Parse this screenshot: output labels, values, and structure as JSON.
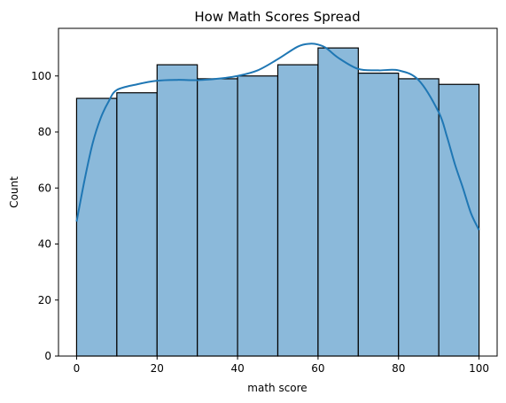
{
  "chart_data": {
    "type": "bar",
    "title": "How Math Scores Spread",
    "xlabel": "math score",
    "ylabel": "Count",
    "bins": [
      {
        "start": 0,
        "end": 10,
        "count": 92
      },
      {
        "start": 10,
        "end": 20,
        "count": 94
      },
      {
        "start": 20,
        "end": 30,
        "count": 104
      },
      {
        "start": 30,
        "end": 40,
        "count": 99
      },
      {
        "start": 40,
        "end": 50,
        "count": 100
      },
      {
        "start": 50,
        "end": 60,
        "count": 104
      },
      {
        "start": 60,
        "end": 70,
        "count": 110
      },
      {
        "start": 70,
        "end": 80,
        "count": 101
      },
      {
        "start": 80,
        "end": 90,
        "count": 99
      },
      {
        "start": 90,
        "end": 100,
        "count": 97
      }
    ],
    "kde": {
      "x": [
        0,
        2,
        4,
        6,
        8,
        10,
        15,
        20,
        25,
        30,
        35,
        40,
        45,
        50,
        55,
        58,
        60,
        62,
        65,
        70,
        75,
        80,
        85,
        90,
        92,
        94,
        96,
        98,
        100
      ],
      "y": [
        48,
        63,
        76,
        85,
        91,
        95,
        97,
        98.3,
        98.6,
        98.5,
        99,
        100,
        102,
        106,
        110.5,
        111.5,
        111.2,
        110,
        106.5,
        102.5,
        102,
        102,
        98.5,
        87,
        78.5,
        68.5,
        60,
        51,
        45
      ]
    },
    "xlim": [
      -4.5,
      104.5
    ],
    "ylim": [
      0,
      117
    ],
    "xticks": [
      0,
      20,
      40,
      60,
      80,
      100
    ],
    "yticks": [
      0,
      20,
      40,
      60,
      80,
      100
    ],
    "colors": {
      "bar_fill": "#8bb9da",
      "bar_edge": "#000000",
      "kde_line": "#1f77b4"
    },
    "grid": false,
    "legend": "none"
  }
}
